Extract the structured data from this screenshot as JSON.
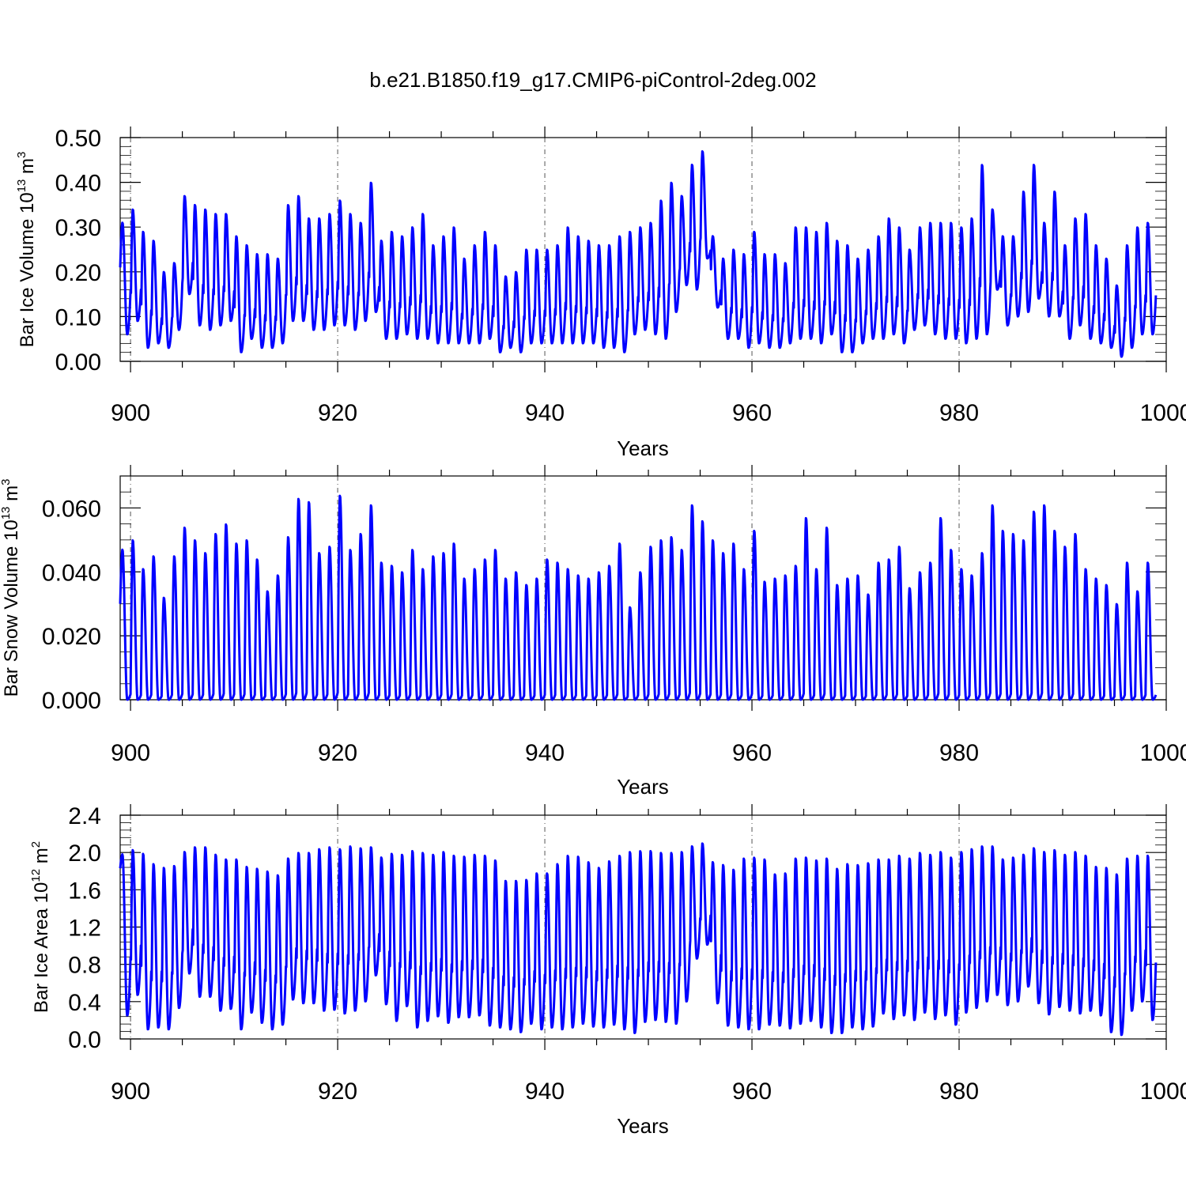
{
  "figure": {
    "title": "b.e21.B1850.f19_g17.CMIP6-piControl-2deg.002"
  },
  "chart_data": [
    {
      "type": "line",
      "id": "ice-volume",
      "ylabel": {
        "main": "Bar Ice Volume 10",
        "exp": "13",
        "unit": " m",
        "unit_exp": "3"
      },
      "xlabel": "Years",
      "xlim": [
        899,
        1000
      ],
      "ylim": [
        0.0,
        0.5
      ],
      "x_ticks": [
        "900",
        "920",
        "940",
        "960",
        "980",
        "1000"
      ],
      "y_ticks": [
        "0.00",
        "0.10",
        "0.20",
        "0.30",
        "0.40",
        "0.50"
      ],
      "grid": "dashed vertical lines at major x ticks",
      "color": "#0000ff",
      "annual_max": [
        0.31,
        0.34,
        0.29,
        0.27,
        0.2,
        0.22,
        0.37,
        0.35,
        0.34,
        0.33,
        0.33,
        0.28,
        0.26,
        0.24,
        0.24,
        0.23,
        0.35,
        0.37,
        0.32,
        0.32,
        0.33,
        0.36,
        0.33,
        0.31,
        0.4,
        0.27,
        0.29,
        0.28,
        0.3,
        0.33,
        0.26,
        0.28,
        0.3,
        0.23,
        0.26,
        0.29,
        0.26,
        0.19,
        0.2,
        0.25,
        0.25,
        0.25,
        0.26,
        0.3,
        0.28,
        0.27,
        0.26,
        0.26,
        0.28,
        0.29,
        0.3,
        0.31,
        0.36,
        0.4,
        0.37,
        0.44,
        0.47,
        0.28,
        0.23,
        0.25,
        0.24,
        0.29,
        0.24,
        0.24,
        0.22,
        0.3,
        0.3,
        0.29,
        0.31,
        0.27,
        0.26,
        0.23,
        0.25,
        0.28,
        0.32,
        0.3,
        0.25,
        0.3,
        0.31,
        0.31,
        0.31,
        0.3,
        0.32,
        0.44,
        0.34,
        0.28,
        0.28,
        0.38,
        0.44,
        0.31,
        0.38,
        0.26,
        0.32,
        0.33,
        0.26,
        0.23,
        0.17,
        0.26,
        0.3,
        0.31
      ],
      "annual_min": [
        0.06,
        0.09,
        0.03,
        0.04,
        0.03,
        0.07,
        0.15,
        0.08,
        0.07,
        0.08,
        0.09,
        0.02,
        0.05,
        0.03,
        0.03,
        0.04,
        0.09,
        0.09,
        0.07,
        0.07,
        0.08,
        0.08,
        0.07,
        0.09,
        0.11,
        0.05,
        0.05,
        0.06,
        0.05,
        0.05,
        0.04,
        0.04,
        0.04,
        0.04,
        0.04,
        0.05,
        0.02,
        0.03,
        0.02,
        0.04,
        0.04,
        0.04,
        0.04,
        0.04,
        0.04,
        0.04,
        0.03,
        0.03,
        0.02,
        0.06,
        0.07,
        0.06,
        0.05,
        0.11,
        0.17,
        0.16,
        0.23,
        0.12,
        0.05,
        0.05,
        0.03,
        0.04,
        0.03,
        0.03,
        0.04,
        0.05,
        0.05,
        0.04,
        0.06,
        0.02,
        0.02,
        0.04,
        0.05,
        0.05,
        0.06,
        0.04,
        0.07,
        0.08,
        0.06,
        0.05,
        0.05,
        0.04,
        0.05,
        0.06,
        0.16,
        0.08,
        0.1,
        0.11,
        0.14,
        0.1,
        0.1,
        0.05,
        0.08,
        0.05,
        0.04,
        0.03,
        0.01,
        0.03,
        0.06,
        0.06
      ]
    },
    {
      "type": "line",
      "id": "snow-volume",
      "ylabel": {
        "main": "Bar Snow Volume 10",
        "exp": "13",
        "unit": " m",
        "unit_exp": "3"
      },
      "xlabel": "Years",
      "xlim": [
        899,
        1000
      ],
      "ylim": [
        0.0,
        0.07
      ],
      "x_ticks": [
        "900",
        "920",
        "940",
        "960",
        "980",
        "1000"
      ],
      "y_ticks": [
        "0.000",
        "0.020",
        "0.040",
        "0.060"
      ],
      "grid": "dashed vertical lines at major x ticks",
      "color": "#0000ff",
      "annual_max": [
        0.047,
        0.05,
        0.041,
        0.045,
        0.032,
        0.045,
        0.054,
        0.05,
        0.046,
        0.052,
        0.055,
        0.049,
        0.05,
        0.044,
        0.034,
        0.039,
        0.051,
        0.063,
        0.062,
        0.046,
        0.048,
        0.064,
        0.047,
        0.052,
        0.061,
        0.043,
        0.042,
        0.04,
        0.047,
        0.041,
        0.045,
        0.046,
        0.049,
        0.038,
        0.041,
        0.044,
        0.047,
        0.038,
        0.04,
        0.036,
        0.038,
        0.044,
        0.043,
        0.041,
        0.039,
        0.038,
        0.04,
        0.042,
        0.049,
        0.029,
        0.04,
        0.048,
        0.05,
        0.051,
        0.047,
        0.061,
        0.056,
        0.05,
        0.046,
        0.049,
        0.041,
        0.053,
        0.037,
        0.038,
        0.039,
        0.042,
        0.057,
        0.041,
        0.054,
        0.036,
        0.038,
        0.039,
        0.033,
        0.043,
        0.044,
        0.048,
        0.035,
        0.04,
        0.043,
        0.057,
        0.047,
        0.041,
        0.039,
        0.046,
        0.061,
        0.053,
        0.052,
        0.05,
        0.059,
        0.061,
        0.053,
        0.048,
        0.052,
        0.041,
        0.038,
        0.036,
        0.03,
        0.043,
        0.034,
        0.043
      ],
      "annual_min": [
        0.0,
        0.0,
        0.0,
        0.0,
        0.0,
        0.0,
        0.0,
        0.0,
        0.0,
        0.0,
        0.0,
        0.0,
        0.0,
        0.0,
        0.0,
        0.0,
        0.0,
        0.0,
        0.0,
        0.0,
        0.0,
        0.0,
        0.0,
        0.0,
        0.0,
        0.0,
        0.0,
        0.0,
        0.0,
        0.0,
        0.0,
        0.0,
        0.0,
        0.0,
        0.0,
        0.0,
        0.0,
        0.0,
        0.0,
        0.0,
        0.0,
        0.0,
        0.0,
        0.0,
        0.0,
        0.0,
        0.0,
        0.0,
        0.0,
        0.0,
        0.0,
        0.0,
        0.0,
        0.0,
        0.0,
        0.0,
        0.0,
        0.0,
        0.0,
        0.0,
        0.0,
        0.0,
        0.0,
        0.0,
        0.0,
        0.0,
        0.0,
        0.0,
        0.0,
        0.0,
        0.0,
        0.0,
        0.0,
        0.0,
        0.0,
        0.0,
        0.0,
        0.0,
        0.0,
        0.0,
        0.0,
        0.0,
        0.0,
        0.0,
        0.0,
        0.0,
        0.0,
        0.0,
        0.0,
        0.0,
        0.0,
        0.0,
        0.0,
        0.0,
        0.0,
        0.0,
        0.0,
        0.0,
        0.0,
        0.0
      ]
    },
    {
      "type": "line",
      "id": "ice-area",
      "ylabel": {
        "main": "Bar Ice Area 10",
        "exp": "12",
        "unit": " m",
        "unit_exp": "2"
      },
      "xlabel": "Years",
      "xlim": [
        899,
        1000
      ],
      "ylim": [
        0.0,
        2.4
      ],
      "x_ticks": [
        "900",
        "920",
        "940",
        "960",
        "980",
        "1000"
      ],
      "y_ticks": [
        "0.0",
        "0.4",
        "0.8",
        "1.2",
        "1.6",
        "2.0",
        "2.4"
      ],
      "grid": "dashed vertical lines at major x ticks",
      "color": "#0000ff",
      "annual_max": [
        1.98,
        2.03,
        1.99,
        1.88,
        1.84,
        1.86,
        2.01,
        2.06,
        2.06,
        1.98,
        1.93,
        1.93,
        1.85,
        1.83,
        1.8,
        1.76,
        1.94,
        2.0,
        2.0,
        2.04,
        2.06,
        2.04,
        2.07,
        2.05,
        2.06,
        1.95,
        1.99,
        1.98,
        2.02,
        2.0,
        1.98,
        2.01,
        1.97,
        1.96,
        1.98,
        1.97,
        1.92,
        1.7,
        1.7,
        1.71,
        1.78,
        1.78,
        1.88,
        1.97,
        1.96,
        1.9,
        1.84,
        1.91,
        1.97,
        2.01,
        2.02,
        2.02,
        2.0,
        2.0,
        2.01,
        2.07,
        2.1,
        1.9,
        1.87,
        1.82,
        1.94,
        1.95,
        1.93,
        1.77,
        1.78,
        1.94,
        1.95,
        1.92,
        1.94,
        1.83,
        1.88,
        1.87,
        1.89,
        1.93,
        1.93,
        1.97,
        1.94,
        2.0,
        1.98,
        2.01,
        1.95,
        2.01,
        2.04,
        2.07,
        2.07,
        1.93,
        1.95,
        1.98,
        2.05,
        2.01,
        2.03,
        1.98,
        2.01,
        1.97,
        1.85,
        1.84,
        1.77,
        1.94,
        1.97,
        1.97
      ],
      "annual_min": [
        0.25,
        0.47,
        0.1,
        0.12,
        0.1,
        0.33,
        0.7,
        0.45,
        0.45,
        0.3,
        0.32,
        0.1,
        0.28,
        0.17,
        0.1,
        0.15,
        0.42,
        0.38,
        0.38,
        0.3,
        0.31,
        0.27,
        0.3,
        0.4,
        0.68,
        0.37,
        0.19,
        0.35,
        0.12,
        0.19,
        0.24,
        0.17,
        0.23,
        0.23,
        0.25,
        0.14,
        0.12,
        0.1,
        0.07,
        0.16,
        0.1,
        0.12,
        0.1,
        0.12,
        0.16,
        0.13,
        0.12,
        0.15,
        0.1,
        0.06,
        0.18,
        0.2,
        0.18,
        0.16,
        0.4,
        0.86,
        1.01,
        0.38,
        0.14,
        0.12,
        0.1,
        0.1,
        0.15,
        0.14,
        0.11,
        0.16,
        0.19,
        0.12,
        0.06,
        0.06,
        0.12,
        0.1,
        0.13,
        0.27,
        0.21,
        0.25,
        0.2,
        0.28,
        0.21,
        0.25,
        0.15,
        0.28,
        0.33,
        0.4,
        0.47,
        0.36,
        0.4,
        0.56,
        0.38,
        0.26,
        0.34,
        0.3,
        0.27,
        0.3,
        0.25,
        0.07,
        0.04,
        0.3,
        0.4,
        0.2
      ]
    }
  ]
}
